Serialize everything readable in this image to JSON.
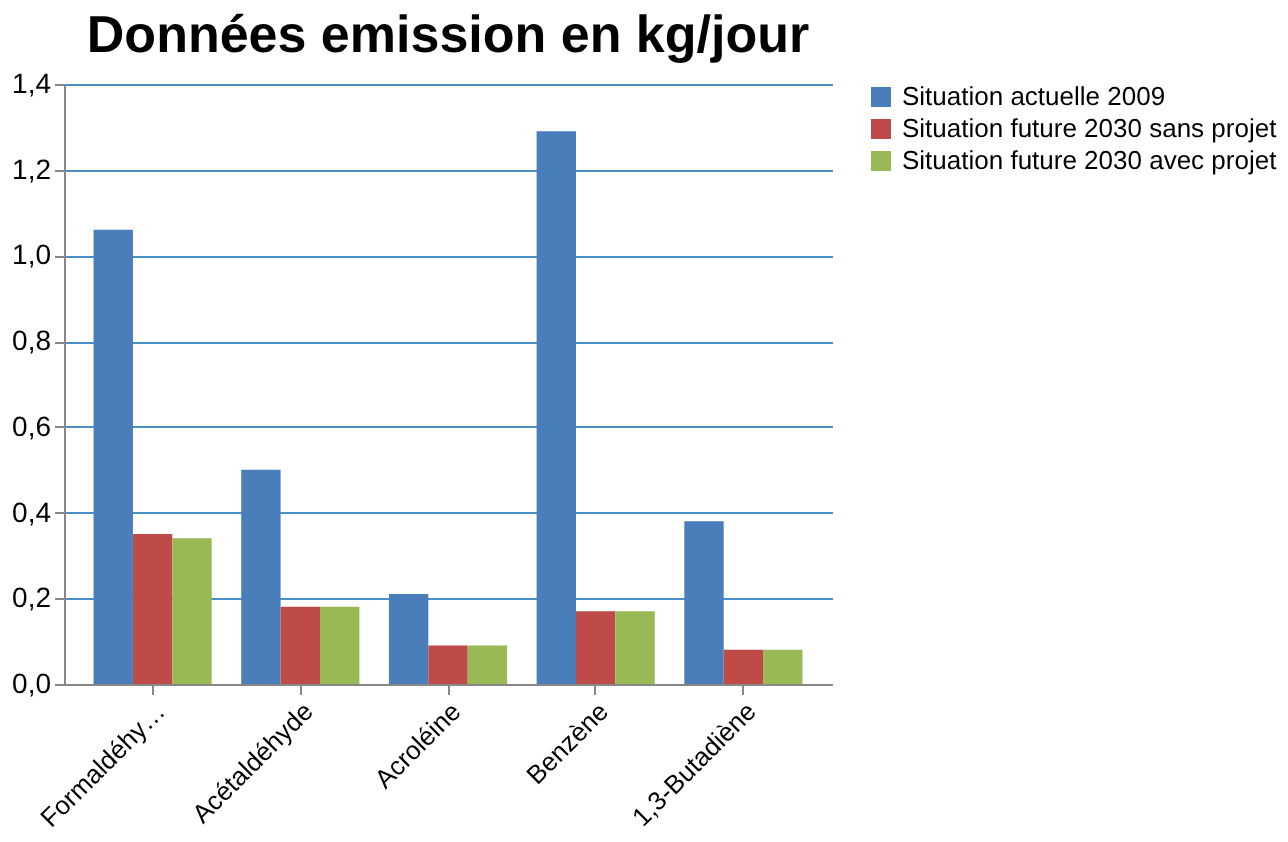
{
  "chart_data": {
    "type": "bar",
    "title": "Données emission en  kg/jour",
    "categories": [
      "Formaldéhy…",
      "Acétaldéhyde",
      "Acroléine",
      "Benzène",
      "1,3-Butadiène"
    ],
    "series": [
      {
        "name": "Situation actuelle 2009",
        "color": "#4a7ebb",
        "values": [
          1.06,
          0.5,
          0.21,
          1.29,
          0.38
        ]
      },
      {
        "name": "Situation future 2030 sans projet",
        "color": "#be4b48",
        "values": [
          0.35,
          0.18,
          0.09,
          0.17,
          0.08
        ]
      },
      {
        "name": "Situation future 2030 avec projet",
        "color": "#98b954",
        "values": [
          0.34,
          0.18,
          0.09,
          0.17,
          0.08
        ]
      }
    ],
    "ylim": [
      0,
      1.4
    ],
    "yticks": [
      {
        "value": 0,
        "label": "0,0"
      },
      {
        "value": 0.2,
        "label": "0,2"
      },
      {
        "value": 0.4,
        "label": "0,4"
      },
      {
        "value": 0.6,
        "label": "0,6"
      },
      {
        "value": 0.8,
        "label": "0,8"
      },
      {
        "value": 1.0,
        "label": "1,0"
      },
      {
        "value": 1.2,
        "label": "1,2"
      },
      {
        "value": 1.4,
        "label": "1,4"
      }
    ],
    "grid": "y",
    "legend": "right"
  }
}
